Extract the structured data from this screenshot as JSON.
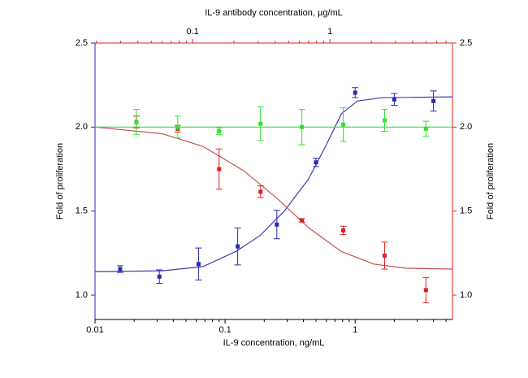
{
  "chart_data": {
    "type": "scatter",
    "xlabel": "IL-9  concentration, ng/mL",
    "x2label": "IL-9 antibody concentration, µg/mL",
    "ylabel": "Fold of proliferation",
    "y2label": "Fold of proliferation",
    "xscale": "log",
    "x2scale": "log",
    "xlim": [
      0.01,
      5.6
    ],
    "xticks": [
      0.01,
      0.1,
      1
    ],
    "xminorticks": [
      0.02,
      0.03,
      0.04,
      0.05,
      0.06,
      0.07,
      0.08,
      0.09,
      0.2,
      0.3,
      0.4,
      0.5,
      0.6,
      0.7,
      0.8,
      0.9,
      2,
      3,
      4,
      5
    ],
    "x2lim": [
      0.0195,
      7.8
    ],
    "x2ticks": [
      0.1,
      1
    ],
    "x2minorticks": [
      0.02,
      0.03,
      0.04,
      0.05,
      0.06,
      0.07,
      0.08,
      0.09,
      0.2,
      0.3,
      0.4,
      0.5,
      0.6,
      0.7,
      0.8,
      0.9,
      2,
      3,
      4,
      5,
      6,
      7
    ],
    "ylim": [
      0.855,
      2.5
    ],
    "yticks": [
      {
        "value": 1,
        "label": "1.0"
      },
      {
        "value": 1.5,
        "label": "1.5"
      },
      {
        "value": 2,
        "label": "2.0"
      },
      {
        "value": 2.5,
        "label": "2.5"
      }
    ],
    "y2lim": [
      0.855,
      2.5
    ],
    "y2ticks": [
      {
        "value": 1,
        "label": "1.0"
      },
      {
        "value": 1.5,
        "label": "1.5"
      },
      {
        "value": 2,
        "label": "2.0"
      },
      {
        "value": 2.5,
        "label": "2.5"
      }
    ],
    "series": [
      {
        "color": "#2a2ab5",
        "xaxis": "bottom",
        "x": [
          0.0156,
          0.03125,
          0.0625,
          0.125,
          0.25,
          0.5,
          1,
          2,
          4
        ],
        "values": [
          1.155,
          1.11,
          1.185,
          1.29,
          1.42,
          1.79,
          2.205,
          2.165,
          2.155
        ],
        "errors": [
          0.02,
          0.04,
          0.095,
          0.11,
          0.085,
          0.025,
          0.03,
          0.035,
          0.06
        ]
      },
      {
        "color": "#e02020",
        "xaxis": "top",
        "x": [
          0.039,
          0.078,
          0.156,
          0.3125,
          0.625,
          1.25,
          2.5,
          5
        ],
        "values": [
          2.03,
          1.99,
          1.75,
          1.615,
          1.445,
          1.385,
          1.235,
          1.03
        ],
        "errors": [
          0.035,
          0.02,
          0.12,
          0.035,
          0.01,
          0.025,
          0.08,
          0.075
        ]
      },
      {
        "color": "#33e033",
        "xaxis": "top",
        "x": [
          0.039,
          0.078,
          0.156,
          0.3125,
          0.625,
          1.25,
          2.5,
          5
        ],
        "values": [
          2.03,
          2.0,
          1.975,
          2.02,
          2.0,
          2.015,
          2.04,
          1.99
        ],
        "errors": [
          0.075,
          0.065,
          0.02,
          0.1,
          0.105,
          0.1,
          0.065,
          0.045
        ]
      }
    ],
    "fits": [
      {
        "color": "#4040a8",
        "xaxis": "bottom",
        "x": [
          0.01,
          0.033,
          0.0677,
          0.121,
          0.186,
          0.285,
          0.437,
          0.587,
          0.785,
          1.04,
          1.61,
          5.6
        ],
        "values": [
          1.14,
          1.145,
          1.17,
          1.26,
          1.355,
          1.5,
          1.69,
          1.88,
          2.08,
          2.155,
          2.175,
          2.18
        ]
      },
      {
        "color": "#c85050",
        "xaxis": "top",
        "x": [
          0.0195,
          0.0604,
          0.119,
          0.236,
          0.407,
          0.703,
          1.21,
          2.08,
          3.59,
          7.8
        ],
        "values": [
          2.0,
          1.96,
          1.885,
          1.74,
          1.58,
          1.4,
          1.26,
          1.185,
          1.16,
          1.155
        ]
      },
      {
        "color": "#33e033",
        "xaxis": "top",
        "x": [
          0.0195,
          7.8
        ],
        "values": [
          2.0,
          2.0
        ]
      }
    ]
  }
}
